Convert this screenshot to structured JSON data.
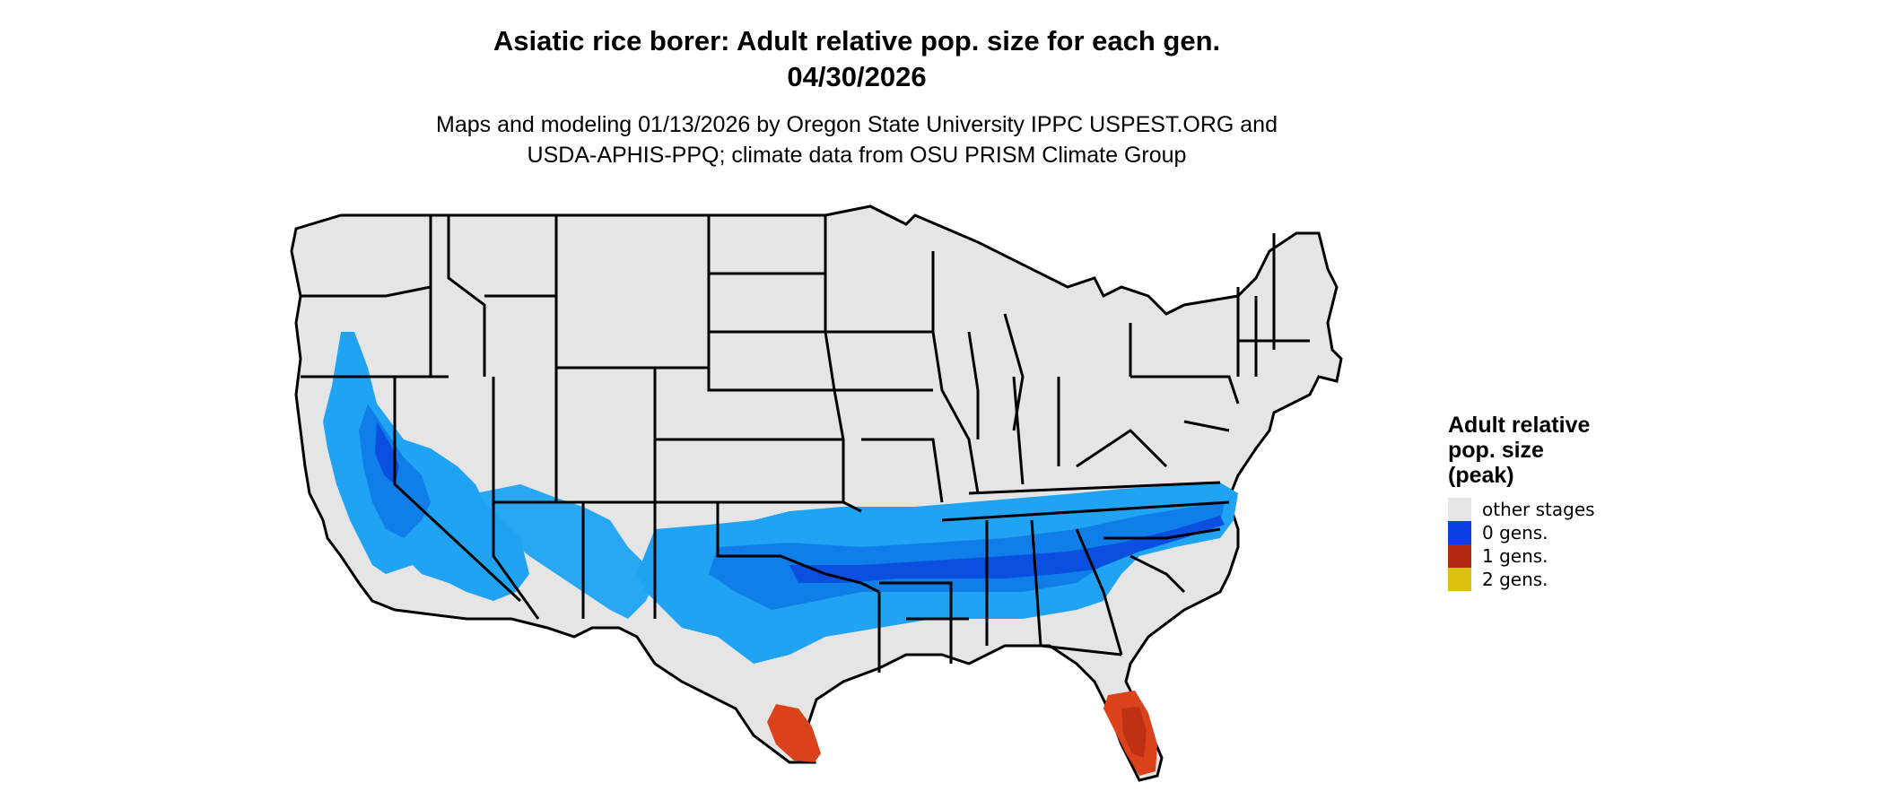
{
  "header": {
    "title_line1": "Asiatic rice borer: Adult relative pop. size for each gen.",
    "title_line2": "04/30/2026",
    "subtitle_line1": "Maps and modeling 01/13/2026 by Oregon State University IPPC USPEST.ORG and",
    "subtitle_line2": "USDA-APHIS-PPQ; climate data from OSU PRISM Climate Group"
  },
  "legend": {
    "title_line1": "Adult relative",
    "title_line2": "pop. size",
    "title_line3": "(peak)",
    "items": [
      {
        "label": "other stages",
        "color": "#e5e5e5"
      },
      {
        "label": "0 gens.",
        "color": "#0a3ee6"
      },
      {
        "label": "1 gens.",
        "color": "#b22a12"
      },
      {
        "label": "2 gens.",
        "color": "#dcc20e"
      }
    ]
  },
  "map_colors": {
    "land": "#e5e5e5",
    "border": "#000000",
    "zero_gen_light": "#1fa3f2",
    "zero_gen_mid": "#0f7ee9",
    "zero_gen_dark": "#0a4fdf",
    "one_gen": "#d9421a",
    "one_gen_dark": "#b22a12"
  }
}
